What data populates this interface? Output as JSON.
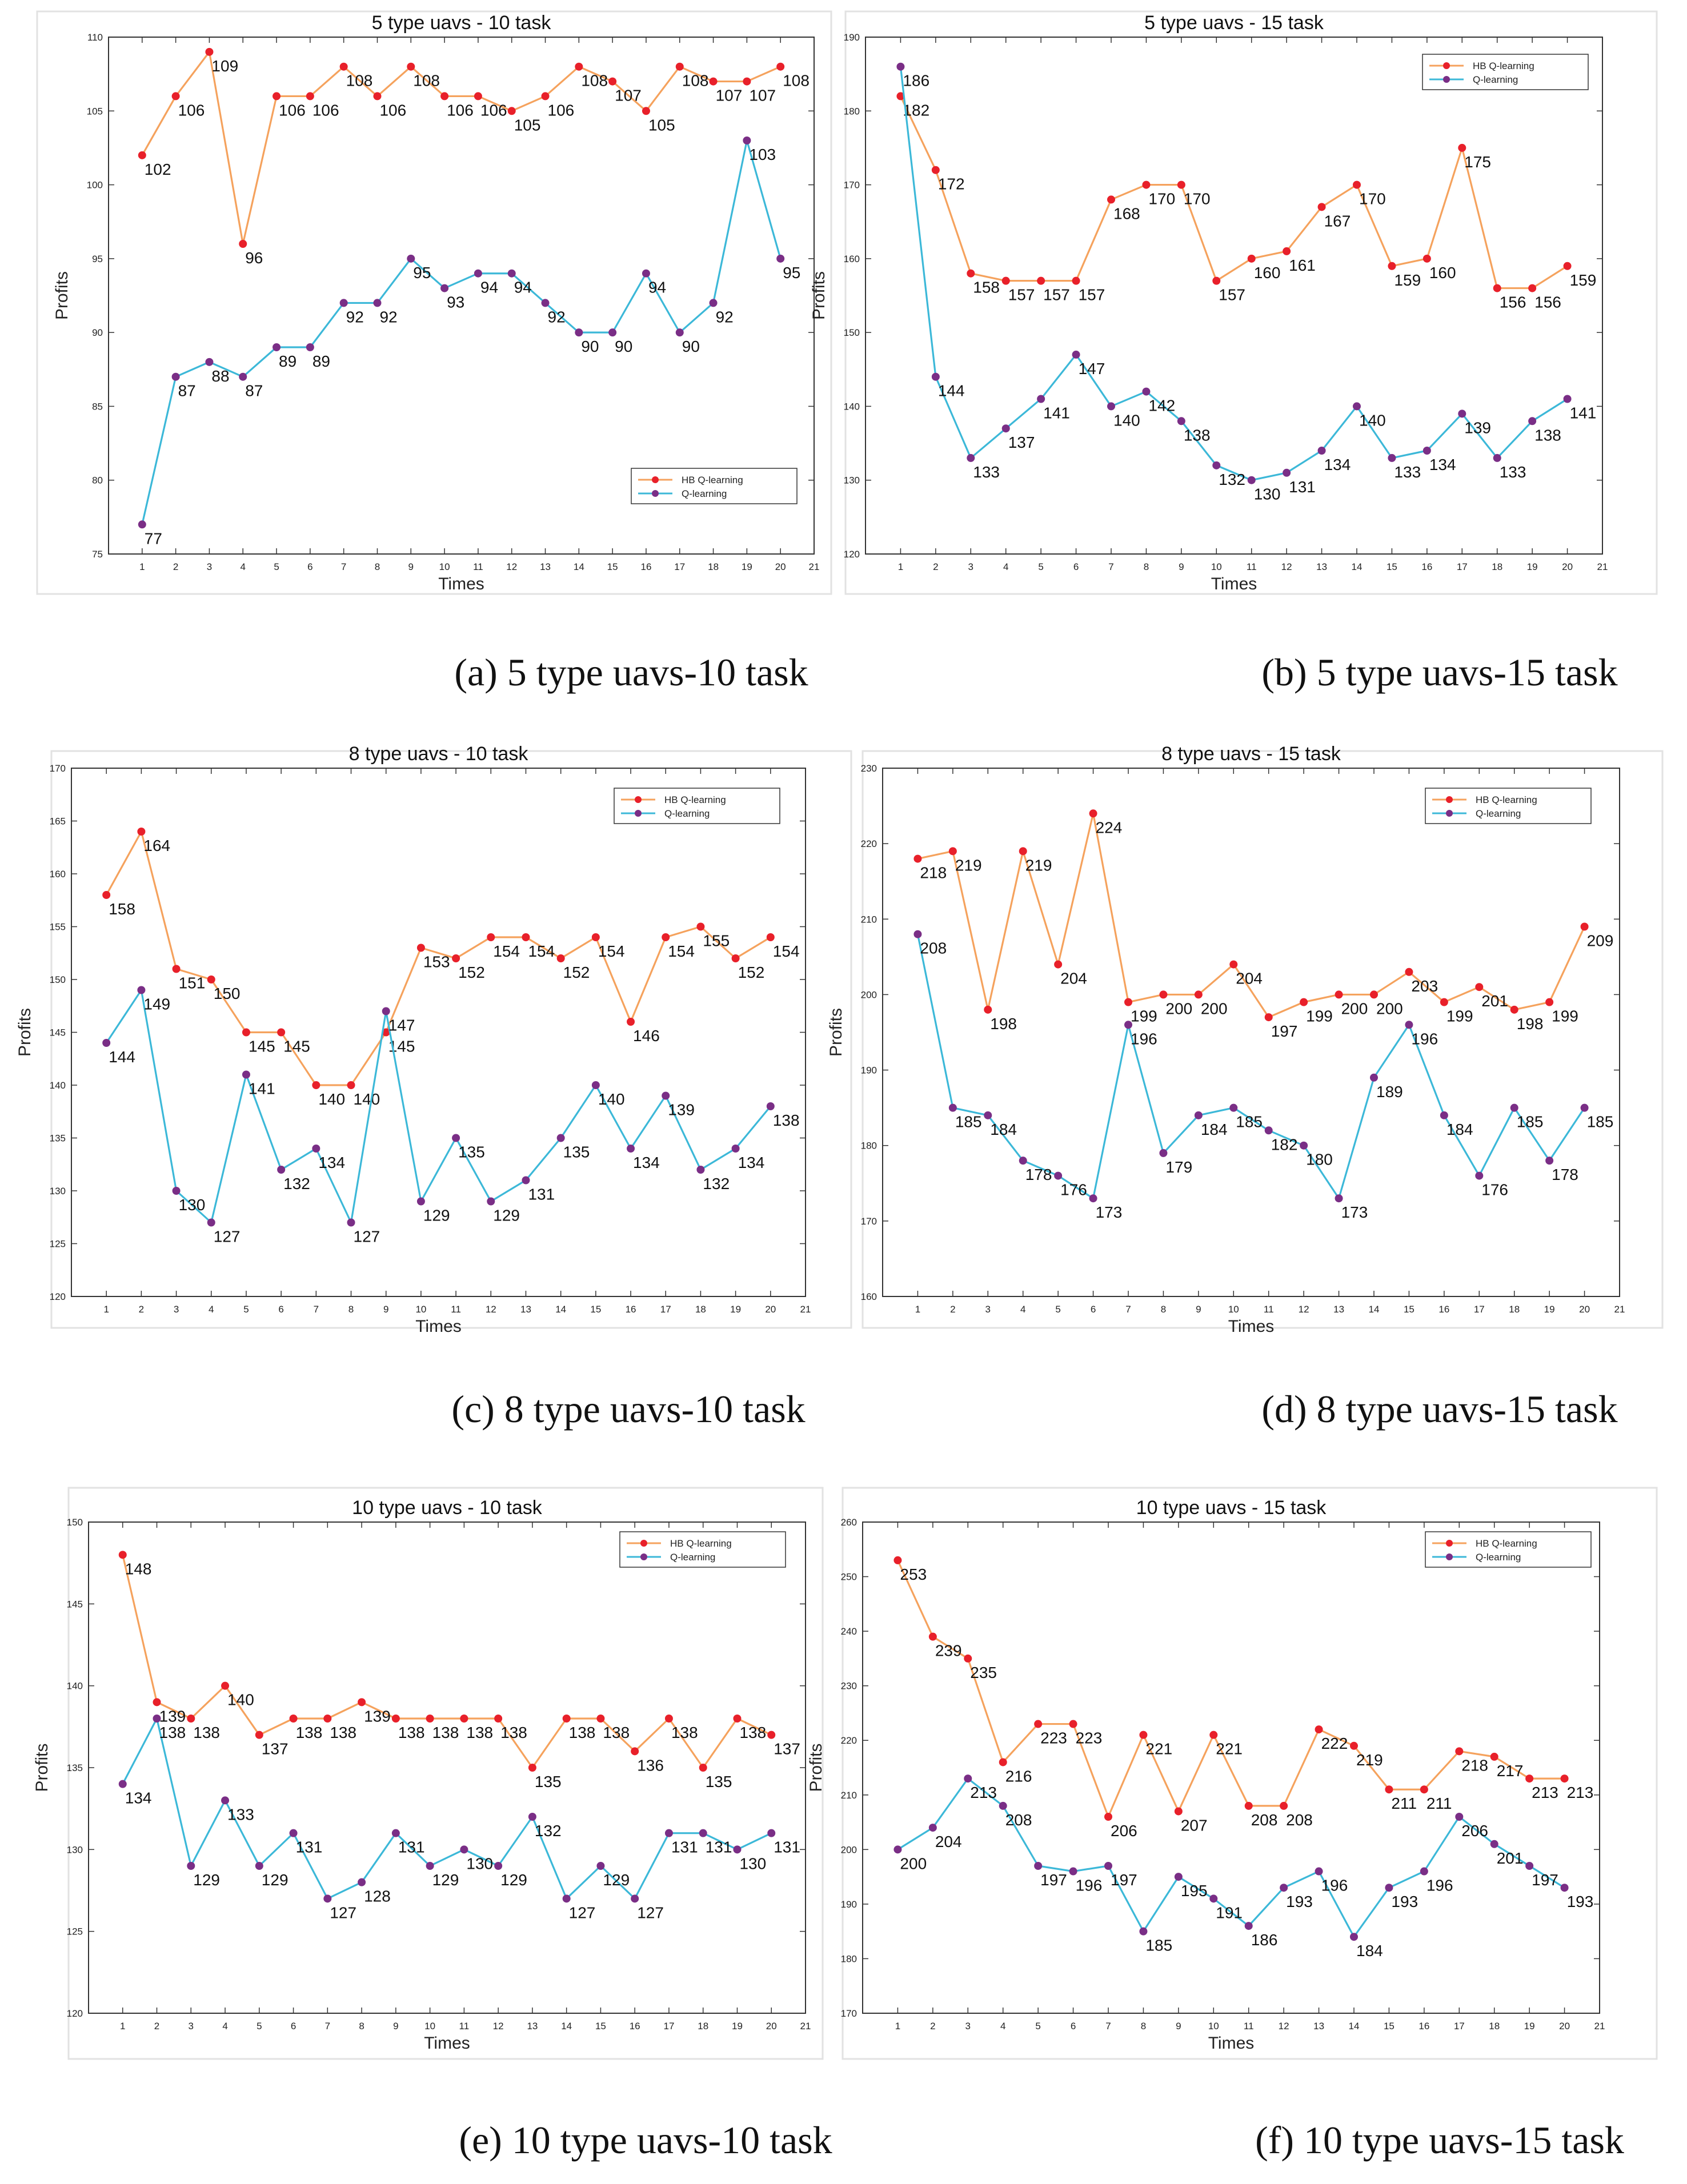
{
  "colors": {
    "hb": "#F5A25D",
    "hb_marker": "#E8202A",
    "q": "#3CB8D8",
    "q_marker": "#7A2E86"
  },
  "captions": [
    "(a) 5 type uavs-10 task",
    "(b) 5 type uavs-15 task",
    "(c) 8 type uavs-10 task",
    "(d) 8 type uavs-15 task",
    "(e) 10 type uavs-10 task",
    "(f) 10 type uavs-15 task"
  ],
  "chart_data": [
    {
      "type": "line",
      "title": "5 type uavs - 10 task",
      "xlabel": "Times",
      "ylabel": "Profits",
      "ylim": [
        75,
        110
      ],
      "yticks": [
        75,
        80,
        85,
        90,
        95,
        100,
        105,
        110
      ],
      "xlim": [
        0,
        21
      ],
      "legend": "bottom-right",
      "x": [
        1,
        2,
        3,
        4,
        5,
        6,
        7,
        8,
        9,
        10,
        11,
        12,
        13,
        14,
        15,
        16,
        17,
        18,
        19,
        20
      ],
      "series": [
        {
          "name": "HB Q-learning",
          "values": [
            102,
            106,
            109,
            96,
            106,
            106,
            108,
            106,
            108,
            106,
            106,
            105,
            106,
            108,
            107,
            105,
            108,
            107,
            107,
            108
          ]
        },
        {
          "name": "Q-learning",
          "values": [
            77,
            87,
            88,
            87,
            89,
            89,
            92,
            92,
            95,
            93,
            94,
            94,
            92,
            90,
            90,
            94,
            90,
            92,
            103,
            95
          ]
        }
      ]
    },
    {
      "type": "line",
      "title": "5 type uavs - 15 task",
      "xlabel": "Times",
      "ylabel": "Profits",
      "ylim": [
        120,
        190
      ],
      "yticks": [
        120,
        130,
        140,
        150,
        160,
        170,
        180,
        190
      ],
      "xlim": [
        0,
        21
      ],
      "legend": "top-right",
      "x": [
        1,
        2,
        3,
        4,
        5,
        6,
        7,
        8,
        9,
        10,
        11,
        12,
        13,
        14,
        15,
        16,
        17,
        18,
        19,
        20
      ],
      "series": [
        {
          "name": "HB Q-learning",
          "values": [
            182,
            172,
            158,
            157,
            157,
            157,
            168,
            170,
            170,
            157,
            160,
            161,
            167,
            170,
            159,
            160,
            175,
            156,
            156,
            159
          ]
        },
        {
          "name": "Q-learning",
          "values": [
            186,
            144,
            133,
            137,
            141,
            147,
            140,
            142,
            138,
            132,
            130,
            131,
            134,
            140,
            133,
            134,
            139,
            133,
            138,
            141
          ]
        }
      ]
    },
    {
      "type": "line",
      "title": "8 type uavs - 10 task",
      "xlabel": "Times",
      "ylabel": "Profits",
      "ylim": [
        120,
        170
      ],
      "yticks": [
        120,
        125,
        130,
        135,
        140,
        145,
        150,
        155,
        160,
        165,
        170
      ],
      "xlim": [
        0,
        21
      ],
      "legend": "top-right",
      "x": [
        1,
        2,
        3,
        4,
        5,
        6,
        7,
        8,
        9,
        10,
        11,
        12,
        13,
        14,
        15,
        16,
        17,
        18,
        19,
        20
      ],
      "series": [
        {
          "name": "HB Q-learning",
          "values": [
            158,
            164,
            151,
            150,
            145,
            145,
            140,
            140,
            145,
            153,
            152,
            154,
            154,
            152,
            154,
            146,
            154,
            155,
            152,
            154
          ]
        },
        {
          "name": "Q-learning",
          "values": [
            144,
            149,
            130,
            127,
            141,
            132,
            134,
            127,
            147,
            129,
            135,
            129,
            131,
            135,
            140,
            134,
            139,
            132,
            134,
            138
          ]
        }
      ]
    },
    {
      "type": "line",
      "title": "8 type uavs - 15 task",
      "xlabel": "Times",
      "ylabel": "Profits",
      "ylim": [
        160,
        230
      ],
      "yticks": [
        160,
        170,
        180,
        190,
        200,
        210,
        220,
        230
      ],
      "xlim": [
        0,
        21
      ],
      "legend": "top-right",
      "x": [
        1,
        2,
        3,
        4,
        5,
        6,
        7,
        8,
        9,
        10,
        11,
        12,
        13,
        14,
        15,
        16,
        17,
        18,
        19,
        20
      ],
      "series": [
        {
          "name": "HB Q-learning",
          "values": [
            218,
            219,
            198,
            219,
            204,
            224,
            199,
            200,
            200,
            204,
            197,
            199,
            200,
            200,
            203,
            199,
            201,
            198,
            199,
            209
          ]
        },
        {
          "name": "Q-learning",
          "values": [
            208,
            185,
            184,
            178,
            176,
            173,
            196,
            179,
            184,
            185,
            182,
            180,
            173,
            189,
            196,
            184,
            176,
            185,
            178,
            185
          ]
        }
      ]
    },
    {
      "type": "line",
      "title": "10 type uavs - 10 task",
      "xlabel": "Times",
      "ylabel": "Profits",
      "ylim": [
        120,
        150
      ],
      "yticks": [
        120,
        125,
        130,
        135,
        140,
        145,
        150
      ],
      "xlim": [
        0,
        21
      ],
      "legend": "top-right",
      "x": [
        1,
        2,
        3,
        4,
        5,
        6,
        7,
        8,
        9,
        10,
        11,
        12,
        13,
        14,
        15,
        16,
        17,
        18,
        19,
        20
      ],
      "series": [
        {
          "name": "HB Q-learning",
          "values": [
            148,
            139,
            138,
            140,
            137,
            138,
            138,
            139,
            138,
            138,
            138,
            138,
            135,
            138,
            138,
            136,
            138,
            135,
            138,
            137
          ]
        },
        {
          "name": "Q-learning",
          "values": [
            134,
            138,
            129,
            133,
            129,
            131,
            127,
            128,
            131,
            129,
            130,
            129,
            132,
            127,
            129,
            127,
            131,
            131,
            130,
            131
          ]
        }
      ]
    },
    {
      "type": "line",
      "title": "10 type uavs - 15 task",
      "xlabel": "Times",
      "ylabel": "Profits",
      "ylim": [
        170,
        260
      ],
      "yticks": [
        170,
        180,
        190,
        200,
        210,
        220,
        230,
        240,
        250,
        260
      ],
      "xlim": [
        0,
        21
      ],
      "legend": "top-right",
      "x": [
        1,
        2,
        3,
        4,
        5,
        6,
        7,
        8,
        9,
        10,
        11,
        12,
        13,
        14,
        15,
        16,
        17,
        18,
        19,
        20
      ],
      "series": [
        {
          "name": "HB Q-learning",
          "values": [
            253,
            239,
            235,
            216,
            223,
            223,
            206,
            221,
            207,
            221,
            208,
            208,
            222,
            219,
            211,
            211,
            218,
            217,
            213,
            213
          ]
        },
        {
          "name": "Q-learning",
          "values": [
            200,
            204,
            213,
            208,
            197,
            196,
            197,
            185,
            195,
            191,
            186,
            193,
            196,
            184,
            193,
            196,
            206,
            201,
            197,
            193
          ]
        }
      ]
    }
  ]
}
